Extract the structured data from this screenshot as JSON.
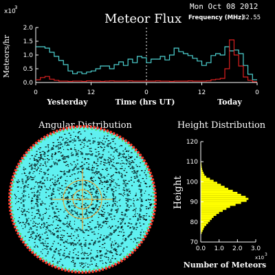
{
  "header": {
    "date": "Mon Oct 08 2012",
    "frequency_label": "Frequency (MHz)",
    "frequency_value": "32.55"
  },
  "colors": {
    "cyan": "#4fd6d6",
    "red": "#e02020",
    "yellow": "#ffff00",
    "dot_cyan": "#5ff0f0",
    "dot_black": "#000000",
    "rim_red": "#ff3b2a",
    "rim_green": "#3cdd4a",
    "grid_orange": "#ff9a1e"
  },
  "chart_data": [
    {
      "type": "line",
      "title": "Meteor Flux",
      "ylabel": "Meteors/hr",
      "y_multiplier": "x10",
      "y_multiplier_exp": "3",
      "xlabel": "Time (hrs UT)",
      "x_ticks": [
        "0",
        "12",
        "0",
        "12",
        "0"
      ],
      "x_tick_values": [
        -48,
        -36,
        -24,
        -12,
        0
      ],
      "y_ticks": [
        "2.0",
        "1.5",
        "1.0",
        "0.5",
        "0.0"
      ],
      "y_tick_values": [
        2.0,
        1.5,
        1.0,
        0.5,
        0.0
      ],
      "xlim": [
        -48,
        0
      ],
      "ylim": [
        0,
        2.0
      ],
      "day_labels": [
        "Yesterday",
        "Today"
      ],
      "series": [
        {
          "color": "cyan",
          "x": [
            -48,
            -47,
            -46,
            -45,
            -44,
            -43,
            -42,
            -41,
            -40,
            -39,
            -38,
            -37,
            -36,
            -35,
            -34,
            -33,
            -32,
            -31,
            -30,
            -29,
            -28,
            -27,
            -26,
            -25,
            -24,
            -23,
            -22,
            -21,
            -20,
            -19,
            -18,
            -17,
            -16,
            -15,
            -14,
            -13,
            -12,
            -11,
            -10,
            -9,
            -8,
            -7,
            -6,
            -5,
            -4,
            -3,
            -2,
            -1
          ],
          "values": [
            1.3,
            1.3,
            1.25,
            1.1,
            0.95,
            0.8,
            0.65,
            0.42,
            0.32,
            0.38,
            0.32,
            0.38,
            0.42,
            0.5,
            0.6,
            0.6,
            0.5,
            0.65,
            0.75,
            0.62,
            0.85,
            0.72,
            0.95,
            0.9,
            0.72,
            0.85,
            0.85,
            0.95,
            0.82,
            1.0,
            1.25,
            1.12,
            1.05,
            0.98,
            0.88,
            0.78,
            0.62,
            0.72,
            0.98,
            1.05,
            1.0,
            1.3,
            1.15,
            1.18,
            1.05,
            0.62,
            0.3,
            0.1
          ]
        },
        {
          "color": "red",
          "x": [
            -48,
            -47,
            -46,
            -45,
            -44,
            -43,
            -42,
            -41,
            -40,
            -39,
            -38,
            -37,
            -36,
            -35,
            -34,
            -33,
            -32,
            -31,
            -30,
            -29,
            -28,
            -27,
            -26,
            -25,
            -24,
            -23,
            -22,
            -21,
            -20,
            -19,
            -18,
            -17,
            -16,
            -15,
            -14,
            -13,
            -12,
            -11,
            -10,
            -9,
            -8,
            -7,
            -6,
            -5,
            -4,
            -3,
            -2,
            -1
          ],
          "values": [
            0.1,
            0.18,
            0.22,
            0.12,
            0.08,
            0.05,
            0.05,
            0.04,
            0.05,
            0.05,
            0.04,
            0.06,
            0.05,
            0.05,
            0.04,
            0.05,
            0.06,
            0.05,
            0.05,
            0.05,
            0.06,
            0.05,
            0.05,
            0.05,
            0.05,
            0.05,
            0.06,
            0.05,
            0.05,
            0.04,
            0.05,
            0.05,
            0.05,
            0.06,
            0.05,
            0.05,
            0.05,
            0.06,
            0.1,
            0.12,
            0.15,
            0.5,
            1.55,
            1.0,
            0.6,
            0.2,
            0.08,
            0.03
          ]
        }
      ]
    },
    {
      "type": "scatter",
      "title": "Angular Distribution",
      "grid": true
    },
    {
      "type": "bar",
      "orientation": "horizontal",
      "title": "Height Distribution",
      "ylabel": "Height",
      "xlabel": "Number of Meteors",
      "x_multiplier": "x10",
      "x_multiplier_exp": "3",
      "x_ticks": [
        "0.0",
        "1.0",
        "2.0",
        "3.0"
      ],
      "x_tick_values": [
        0,
        1,
        2,
        3
      ],
      "y_ticks": [
        "120",
        "110",
        "100",
        "90",
        "80",
        "70"
      ],
      "y_tick_values": [
        120,
        110,
        100,
        90,
        80,
        70
      ],
      "xlim": [
        0,
        3.0
      ],
      "ylim": [
        70,
        120
      ],
      "bin_width": 1,
      "heights": [
        74,
        75,
        76,
        77,
        78,
        79,
        80,
        81,
        82,
        83,
        84,
        85,
        86,
        87,
        88,
        89,
        90,
        91,
        92,
        93,
        94,
        95,
        96,
        97,
        98,
        99,
        100,
        101,
        102,
        103,
        104,
        105,
        106,
        107,
        108,
        109,
        110
      ],
      "values": [
        0.05,
        0.1,
        0.15,
        0.2,
        0.3,
        0.4,
        0.5,
        0.6,
        0.7,
        0.85,
        1.0,
        1.2,
        1.4,
        1.6,
        1.9,
        2.2,
        2.5,
        2.6,
        2.45,
        2.2,
        2.0,
        1.75,
        1.5,
        1.3,
        1.1,
        0.9,
        0.7,
        0.5,
        0.3,
        0.2,
        0.15,
        0.1,
        0.07,
        0.05,
        0.04,
        0.03,
        0.02
      ]
    }
  ]
}
